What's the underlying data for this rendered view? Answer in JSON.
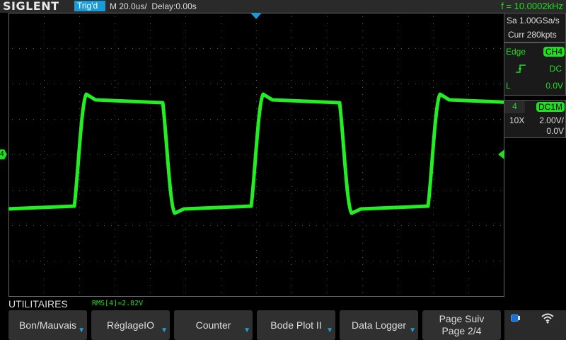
{
  "header": {
    "brand": "SIGLENT",
    "trigger_status": "Trig'd",
    "timebase": "M 20.0us/",
    "delay": "Delay:0.00s",
    "frequency": "f = 10.0002kHz"
  },
  "acquisition": {
    "sample_rate": "Sa 1.00GSa/s",
    "memory": "Curr 280kpts"
  },
  "trigger": {
    "type": "Edge",
    "source": "CH4",
    "coupling": "DC",
    "level_label": "L",
    "level": "0.0V",
    "slope_icon": "rising-edge-icon"
  },
  "channel": {
    "number": "4",
    "coupling": "DC1M",
    "probe": "10X",
    "scale": "2.00V/",
    "offset": "0.0V",
    "marker": "4",
    "color": "#22dd22"
  },
  "measurement": "RMS[4]=2.82V",
  "menu": {
    "title": "UTILITAIRES",
    "buttons": [
      {
        "label": "Bon/Mauvais"
      },
      {
        "label": "RéglageIO"
      },
      {
        "label": "Counter"
      },
      {
        "label": "Bode Plot II"
      },
      {
        "label": "Data Logger"
      }
    ],
    "next_line1": "Page Suiv",
    "next_line2": "Page 2/4"
  },
  "status_icons": [
    "usb-icon",
    "wifi-icon"
  ],
  "waveform": {
    "frequency_hz": 10000,
    "amplitude_high_div": -1.5,
    "amplitude_low_div": 1.5
  }
}
